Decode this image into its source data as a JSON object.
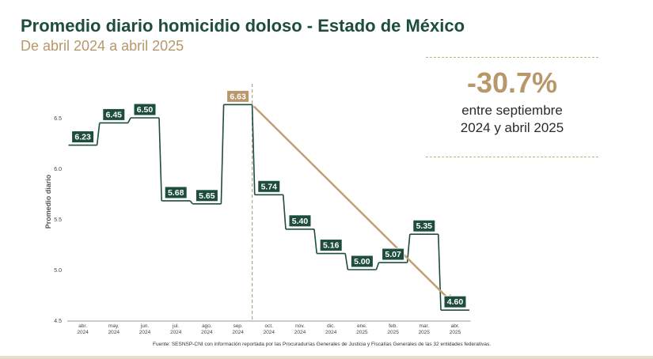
{
  "header": {
    "title": "Promedio diario homicidio doloso - Estado de México",
    "subtitle": "De abril 2024 a abril 2025"
  },
  "callout": {
    "percent": "-30.7%",
    "line1": "entre septiembre",
    "line2": "2024 y abril 2025"
  },
  "footer": {
    "source": "Fuente: SESNSP-CNI con información reportada por las Procuradurías Generales de Justicia y Fiscalías Generales de las 32 entidades federativas."
  },
  "colors": {
    "primary_green": "#1d4d3c",
    "highlight_gold": "#b8976a",
    "arrow": "#bfa173"
  },
  "chart_data": {
    "type": "line",
    "step": true,
    "title": "Promedio diario homicidio doloso - Estado de México",
    "ylabel": "Promedio diario",
    "xlabel": "",
    "ylim": [
      4.5,
      6.8
    ],
    "yticks": [
      4.5,
      5.0,
      5.5,
      6.0,
      6.5
    ],
    "categories": [
      [
        "abr.",
        "2024"
      ],
      [
        "may.",
        "2024"
      ],
      [
        "jun.",
        "2024"
      ],
      [
        "jul.",
        "2024"
      ],
      [
        "ago.",
        "2024"
      ],
      [
        "sep.",
        "2024"
      ],
      [
        "oct.",
        "2024"
      ],
      [
        "nov.",
        "2024"
      ],
      [
        "dic.",
        "2024"
      ],
      [
        "ene.",
        "2025"
      ],
      [
        "feb.",
        "2025"
      ],
      [
        "mar.",
        "2025"
      ],
      [
        "abr.",
        "2025"
      ]
    ],
    "values": [
      6.23,
      6.45,
      6.5,
      5.68,
      5.65,
      6.63,
      5.74,
      5.4,
      5.16,
      5.0,
      5.07,
      5.35,
      4.6
    ],
    "labels": [
      "6.23",
      "6.45",
      "6.50",
      "5.68",
      "5.65",
      "6.63",
      "5.74",
      "5.40",
      "5.16",
      "5.00",
      "5.07",
      "5.35",
      "4.60"
    ],
    "highlight_index": 5,
    "trend_arrow": {
      "from_index": 5,
      "to_index": 12
    },
    "grid": false
  }
}
